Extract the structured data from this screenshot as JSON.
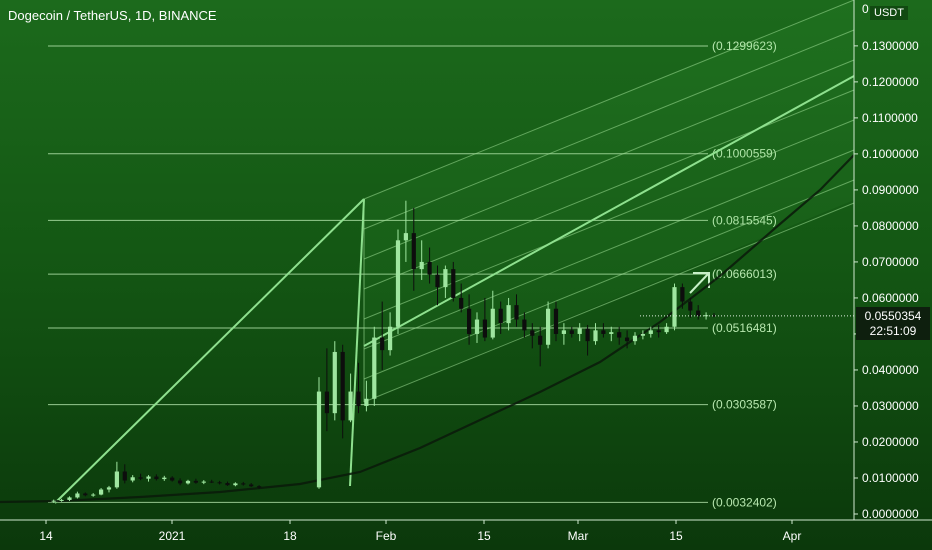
{
  "header": {
    "title": "Dogecoin / TetherUS, 1D, BINANCE",
    "currency": "USDT"
  },
  "price_label": {
    "value": "0.0550354",
    "countdown": "22:51:09"
  },
  "colors": {
    "up": "#9fe6a0",
    "down": "#0d0d0d",
    "fib_line": "#b8e8b0",
    "channel": "#9ede96",
    "curve": "#0a1a0a",
    "axis_text": "#ffffff"
  },
  "chart_data": {
    "type": "candlestick",
    "y_axis": {
      "range": [
        0,
        0.14
      ],
      "ticks": [
        "0.0000000",
        "0.0100000",
        "0.0200000",
        "0.0300000",
        "0.0400000",
        "0.0500000",
        "0.0600000",
        "0.0700000",
        "0.0800000",
        "0.0900000",
        "0.1000000",
        "0.1100000",
        "0.1200000",
        "0.1300000"
      ],
      "top_cut_label": "0"
    },
    "x_axis": {
      "ticks": [
        "14",
        "2021",
        "18",
        "Feb",
        "15",
        "Mar",
        "15",
        "Apr"
      ]
    },
    "fib_levels": [
      {
        "label": "(0.1299623)",
        "value": 0.1299623
      },
      {
        "label": "(0.1000559)",
        "value": 0.1000559
      },
      {
        "label": "(0.0815545)",
        "value": 0.0815545
      },
      {
        "label": "(0.0666013)",
        "value": 0.0666013
      },
      {
        "label": "(0.0516481)",
        "value": 0.0516481
      },
      {
        "label": "(0.0303587)",
        "value": 0.0303587
      },
      {
        "label": "(0.0032402)",
        "value": 0.0032402
      }
    ],
    "candles": [
      {
        "o": 0.0035,
        "h": 0.004,
        "l": 0.0031,
        "c": 0.0037
      },
      {
        "o": 0.0037,
        "h": 0.0042,
        "l": 0.0034,
        "c": 0.0039
      },
      {
        "o": 0.0039,
        "h": 0.0049,
        "l": 0.0036,
        "c": 0.0046
      },
      {
        "o": 0.0046,
        "h": 0.0062,
        "l": 0.0043,
        "c": 0.0057
      },
      {
        "o": 0.0057,
        "h": 0.006,
        "l": 0.0049,
        "c": 0.0052
      },
      {
        "o": 0.0052,
        "h": 0.0058,
        "l": 0.0048,
        "c": 0.0054
      },
      {
        "o": 0.0054,
        "h": 0.0072,
        "l": 0.0052,
        "c": 0.0068
      },
      {
        "o": 0.0068,
        "h": 0.0078,
        "l": 0.006,
        "c": 0.0074
      },
      {
        "o": 0.0074,
        "h": 0.0145,
        "l": 0.007,
        "c": 0.0118
      },
      {
        "o": 0.0118,
        "h": 0.0138,
        "l": 0.0085,
        "c": 0.0093
      },
      {
        "o": 0.0093,
        "h": 0.0108,
        "l": 0.0088,
        "c": 0.0102
      },
      {
        "o": 0.0102,
        "h": 0.0112,
        "l": 0.0094,
        "c": 0.0098
      },
      {
        "o": 0.0098,
        "h": 0.0108,
        "l": 0.009,
        "c": 0.0104
      },
      {
        "o": 0.0104,
        "h": 0.011,
        "l": 0.0093,
        "c": 0.0097
      },
      {
        "o": 0.0097,
        "h": 0.0106,
        "l": 0.0092,
        "c": 0.0101
      },
      {
        "o": 0.0101,
        "h": 0.0105,
        "l": 0.009,
        "c": 0.0093
      },
      {
        "o": 0.0093,
        "h": 0.0099,
        "l": 0.008,
        "c": 0.0085
      },
      {
        "o": 0.0085,
        "h": 0.0095,
        "l": 0.0082,
        "c": 0.0092
      },
      {
        "o": 0.0092,
        "h": 0.0098,
        "l": 0.0084,
        "c": 0.0087
      },
      {
        "o": 0.0087,
        "h": 0.0094,
        "l": 0.0083,
        "c": 0.009
      },
      {
        "o": 0.009,
        "h": 0.0095,
        "l": 0.0086,
        "c": 0.0088
      },
      {
        "o": 0.0088,
        "h": 0.0092,
        "l": 0.0082,
        "c": 0.0086
      },
      {
        "o": 0.0086,
        "h": 0.009,
        "l": 0.0078,
        "c": 0.008
      },
      {
        "o": 0.008,
        "h": 0.0088,
        "l": 0.0077,
        "c": 0.0085
      },
      {
        "o": 0.0085,
        "h": 0.0089,
        "l": 0.0079,
        "c": 0.0082
      },
      {
        "o": 0.0082,
        "h": 0.0086,
        "l": 0.0075,
        "c": 0.0077
      },
      {
        "o": 0.0077,
        "h": 0.008,
        "l": 0.007,
        "c": 0.0074
      },
      {
        "o": 0.0074,
        "h": 0.038,
        "l": 0.007,
        "c": 0.034
      },
      {
        "o": 0.034,
        "h": 0.046,
        "l": 0.023,
        "c": 0.028
      },
      {
        "o": 0.028,
        "h": 0.048,
        "l": 0.026,
        "c": 0.045
      },
      {
        "o": 0.045,
        "h": 0.047,
        "l": 0.021,
        "c": 0.026
      },
      {
        "o": 0.026,
        "h": 0.039,
        "l": 0.0255,
        "c": 0.034
      },
      {
        "o": 0.034,
        "h": 0.042,
        "l": 0.028,
        "c": 0.03
      },
      {
        "o": 0.03,
        "h": 0.037,
        "l": 0.0285,
        "c": 0.032
      },
      {
        "o": 0.032,
        "h": 0.052,
        "l": 0.03,
        "c": 0.049
      },
      {
        "o": 0.049,
        "h": 0.059,
        "l": 0.04,
        "c": 0.0455
      },
      {
        "o": 0.0455,
        "h": 0.056,
        "l": 0.044,
        "c": 0.052
      },
      {
        "o": 0.052,
        "h": 0.079,
        "l": 0.05,
        "c": 0.076
      },
      {
        "o": 0.076,
        "h": 0.087,
        "l": 0.07,
        "c": 0.078
      },
      {
        "o": 0.078,
        "h": 0.085,
        "l": 0.062,
        "c": 0.068
      },
      {
        "o": 0.068,
        "h": 0.076,
        "l": 0.065,
        "c": 0.07
      },
      {
        "o": 0.07,
        "h": 0.074,
        "l": 0.064,
        "c": 0.0665
      },
      {
        "o": 0.0665,
        "h": 0.069,
        "l": 0.058,
        "c": 0.063
      },
      {
        "o": 0.063,
        "h": 0.069,
        "l": 0.06,
        "c": 0.068
      },
      {
        "o": 0.068,
        "h": 0.07,
        "l": 0.059,
        "c": 0.06
      },
      {
        "o": 0.06,
        "h": 0.064,
        "l": 0.056,
        "c": 0.057
      },
      {
        "o": 0.057,
        "h": 0.061,
        "l": 0.047,
        "c": 0.05
      },
      {
        "o": 0.05,
        "h": 0.056,
        "l": 0.0475,
        "c": 0.054
      },
      {
        "o": 0.054,
        "h": 0.06,
        "l": 0.048,
        "c": 0.049
      },
      {
        "o": 0.049,
        "h": 0.062,
        "l": 0.0485,
        "c": 0.057
      },
      {
        "o": 0.057,
        "h": 0.059,
        "l": 0.05,
        "c": 0.053
      },
      {
        "o": 0.053,
        "h": 0.06,
        "l": 0.051,
        "c": 0.058
      },
      {
        "o": 0.058,
        "h": 0.061,
        "l": 0.052,
        "c": 0.054
      },
      {
        "o": 0.054,
        "h": 0.056,
        "l": 0.049,
        "c": 0.051
      },
      {
        "o": 0.051,
        "h": 0.053,
        "l": 0.046,
        "c": 0.0495
      },
      {
        "o": 0.0495,
        "h": 0.052,
        "l": 0.041,
        "c": 0.047
      },
      {
        "o": 0.047,
        "h": 0.059,
        "l": 0.046,
        "c": 0.057
      },
      {
        "o": 0.057,
        "h": 0.059,
        "l": 0.048,
        "c": 0.05
      },
      {
        "o": 0.05,
        "h": 0.053,
        "l": 0.047,
        "c": 0.051
      },
      {
        "o": 0.051,
        "h": 0.052,
        "l": 0.049,
        "c": 0.05
      },
      {
        "o": 0.05,
        "h": 0.053,
        "l": 0.048,
        "c": 0.0515
      },
      {
        "o": 0.0515,
        "h": 0.0525,
        "l": 0.044,
        "c": 0.048
      },
      {
        "o": 0.048,
        "h": 0.053,
        "l": 0.047,
        "c": 0.051
      },
      {
        "o": 0.051,
        "h": 0.053,
        "l": 0.049,
        "c": 0.05
      },
      {
        "o": 0.05,
        "h": 0.052,
        "l": 0.048,
        "c": 0.0505
      },
      {
        "o": 0.0505,
        "h": 0.052,
        "l": 0.047,
        "c": 0.049
      },
      {
        "o": 0.049,
        "h": 0.051,
        "l": 0.046,
        "c": 0.048
      },
      {
        "o": 0.048,
        "h": 0.0505,
        "l": 0.047,
        "c": 0.0495
      },
      {
        "o": 0.0495,
        "h": 0.051,
        "l": 0.0485,
        "c": 0.05
      },
      {
        "o": 0.05,
        "h": 0.052,
        "l": 0.049,
        "c": 0.051
      },
      {
        "o": 0.051,
        "h": 0.0525,
        "l": 0.049,
        "c": 0.0505
      },
      {
        "o": 0.0505,
        "h": 0.053,
        "l": 0.05,
        "c": 0.052
      },
      {
        "o": 0.052,
        "h": 0.064,
        "l": 0.051,
        "c": 0.063
      },
      {
        "o": 0.063,
        "h": 0.064,
        "l": 0.057,
        "c": 0.059
      },
      {
        "o": 0.059,
        "h": 0.06,
        "l": 0.0545,
        "c": 0.0565
      },
      {
        "o": 0.0565,
        "h": 0.058,
        "l": 0.054,
        "c": 0.055
      },
      {
        "o": 0.055,
        "h": 0.056,
        "l": 0.054,
        "c": 0.0552
      },
      {
        "o": 0.0552,
        "h": 0.0558,
        "l": 0.0546,
        "c": 0.0550354
      }
    ]
  }
}
